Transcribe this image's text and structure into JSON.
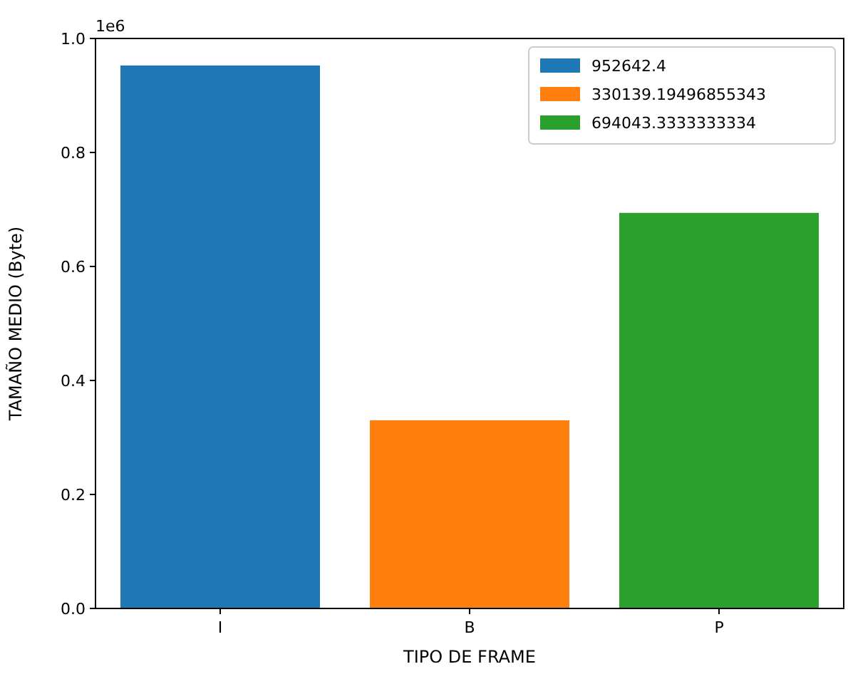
{
  "chart_data": {
    "type": "bar",
    "xlabel": "TIPO DE FRAME",
    "ylabel": "TAMAÑO MEDIO (Byte)",
    "categories": [
      "I",
      "B",
      "P"
    ],
    "series": [
      {
        "name": "952642.4",
        "color": "#1f77b4",
        "values": [
          0.9526424,
          null,
          null
        ]
      },
      {
        "name": "330139.19496855343",
        "color": "#ff7f0e",
        "values": [
          null,
          0.33013919496855343,
          null
        ]
      },
      {
        "name": "694043.3333333334",
        "color": "#2ca02c",
        "values": [
          null,
          null,
          0.6940433333333333
        ]
      }
    ],
    "ylim": [
      0,
      1
    ],
    "yticks": [
      {
        "value": 0,
        "label": "0.0"
      },
      0.2,
      0.4,
      0.6,
      0.8,
      {
        "value": 1,
        "label": "1.0"
      }
    ],
    "annotations": [
      "1e6"
    ],
    "legend": "top right",
    "grid": false
  }
}
